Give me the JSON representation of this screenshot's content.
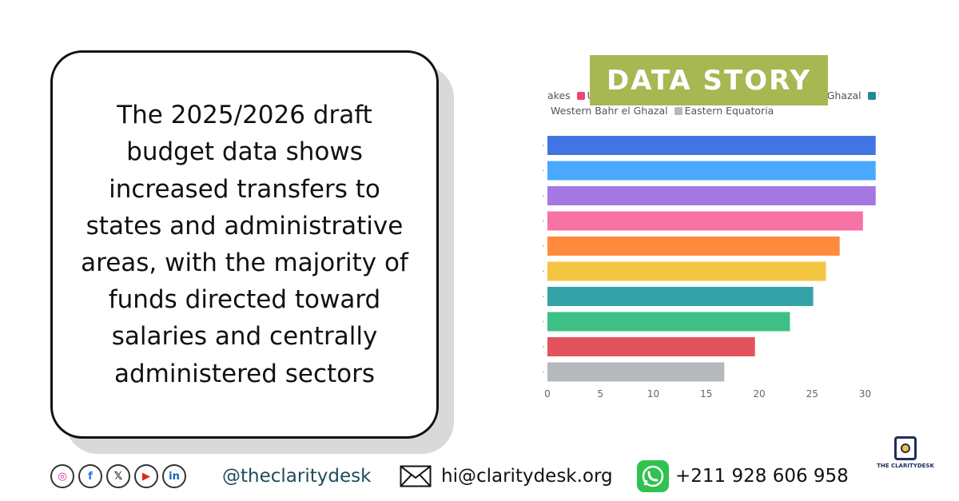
{
  "headline": "The 2025/2026 draft budget data shows increased transfers to states and administrative areas, with the majority of funds directed toward salaries and centrally administered sectors",
  "badge": "DATA STORY",
  "legend": {
    "row1": [
      {
        "label": "akes",
        "color": "#ffffff"
      },
      {
        "label": "Upp",
        "color": "#f0436f"
      },
      {
        "label": "Ghazal",
        "color": "#ffffff"
      },
      {
        "label": "U",
        "color": "#218a93"
      }
    ],
    "row2": [
      {
        "label": "Western Bahr el Ghazal",
        "color": "#ffffff"
      },
      {
        "label": "Eastern Equatoria",
        "color": "#b5b8bd"
      }
    ]
  },
  "chart_data": {
    "type": "bar",
    "orientation": "horizontal",
    "categories": [
      "",
      "",
      "",
      "",
      "",
      "",
      "",
      "",
      "",
      ""
    ],
    "values": [
      31,
      31,
      31,
      29.8,
      27.6,
      26.3,
      25.1,
      22.9,
      19.6,
      16.7
    ],
    "colors": [
      "#4175e3",
      "#4aa8ff",
      "#a577e0",
      "#f773a5",
      "#ff8a3d",
      "#f4c443",
      "#34a3a7",
      "#3cc085",
      "#e4535c",
      "#b5b8bd"
    ],
    "xlim": [
      0,
      31
    ],
    "xticks": [
      0,
      5,
      10,
      15,
      20,
      25,
      30
    ],
    "grid": false,
    "legend_position": "top"
  },
  "footer": {
    "social_icons": [
      {
        "name": "instagram-icon",
        "glyph": "◎",
        "color": "#d6249f"
      },
      {
        "name": "facebook-icon",
        "glyph": "f",
        "color": "#1877f2"
      },
      {
        "name": "x-icon",
        "glyph": "𝕏",
        "color": "#111111"
      },
      {
        "name": "youtube-icon",
        "glyph": "▶",
        "color": "#e62117"
      },
      {
        "name": "linkedin-icon",
        "glyph": "in",
        "color": "#0a66c2"
      }
    ],
    "handle": "@theclaritydesk",
    "email": "hi@claritydesk.org",
    "phone": "+211 928 606 958"
  },
  "logo": {
    "text": "THE CLARITYDESK"
  }
}
